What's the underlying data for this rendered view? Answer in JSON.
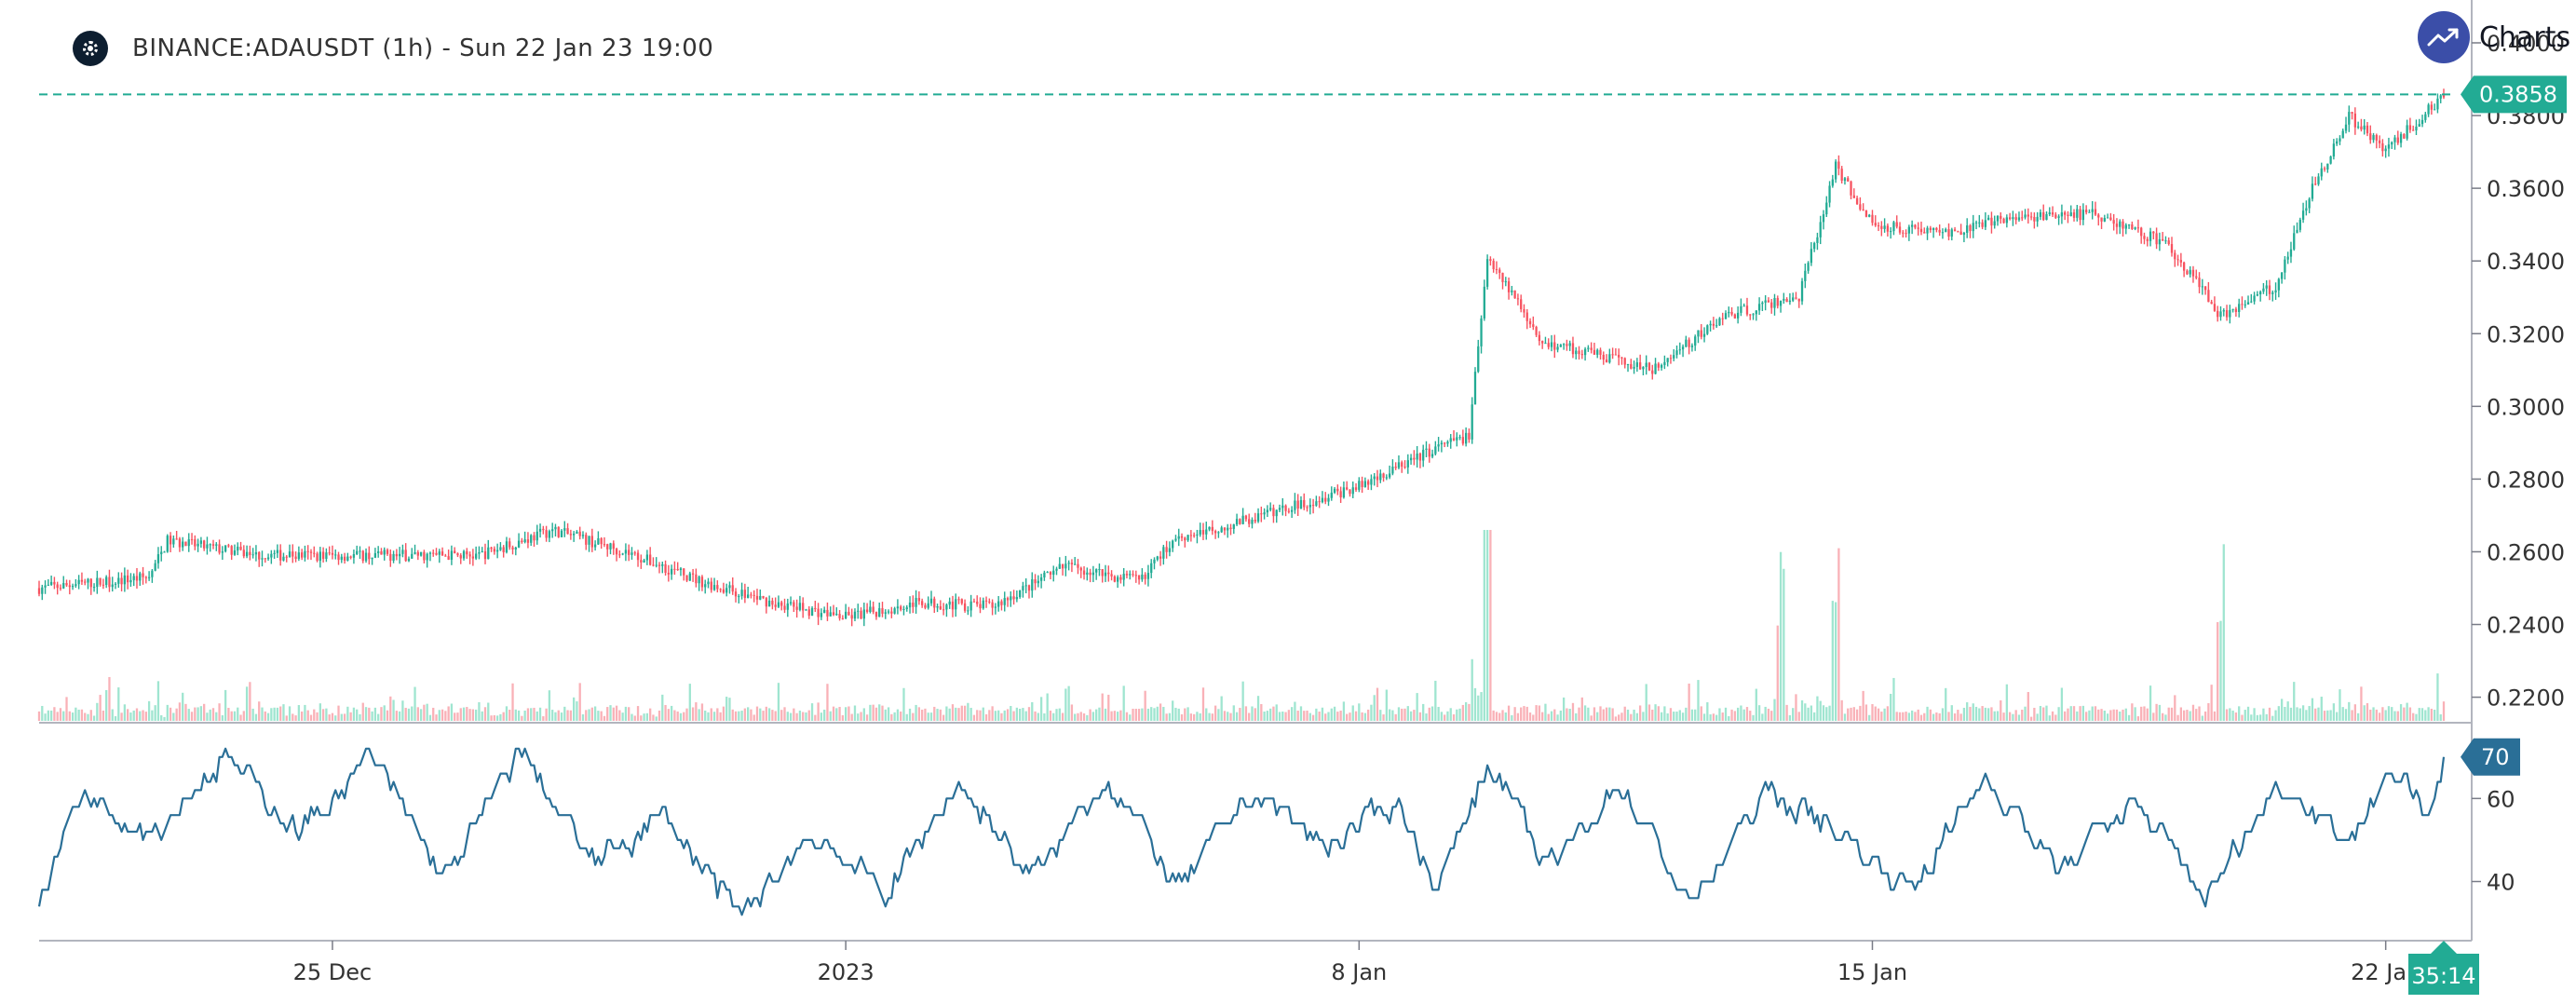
{
  "header": {
    "symbol_title": "BINANCE:ADAUSDT (1h) - Sun 22 Jan 23 19:00",
    "coin_icon": "cardano-logo-icon",
    "brand_icon": "trending-up-icon",
    "brand_text": "Charts p"
  },
  "colors": {
    "up": "#26a69a",
    "up_candle": "#22ab94",
    "down": "#f7525f",
    "volume_up": "#9fe5d0",
    "volume_down": "#f9b1b7",
    "rsi_line": "#2a6f97",
    "last_price_line": "#22ab94",
    "axis": "#787b86"
  },
  "chart_data": [
    {
      "type": "candlestick",
      "title": "",
      "xlabel": "",
      "ylabel": "",
      "x_ticks": [
        "25 Dec",
        "2023",
        "8 Jan",
        "15 Jan",
        "22 Jan"
      ],
      "x_range": [
        "2022-12-21",
        "2023-01-22 19:00"
      ],
      "y_ticks": [
        "0.2200",
        "0.2400",
        "0.2600",
        "0.2800",
        "0.3000",
        "0.3200",
        "0.3400",
        "0.3600",
        "0.3800",
        "0.4000"
      ],
      "ylim": [
        0.214,
        0.4
      ],
      "last_price": "0.3858",
      "countdown": "35:14",
      "grid": false,
      "close_path": [
        [
          "2022-12-21 00:00",
          0.25
        ],
        [
          "2022-12-22 12:00",
          0.253
        ],
        [
          "2022-12-22 18:00",
          0.263
        ],
        [
          "2022-12-24 00:00",
          0.259
        ],
        [
          "2022-12-26 00:00",
          0.259
        ],
        [
          "2022-12-27 00:00",
          0.259
        ],
        [
          "2022-12-28 00:00",
          0.266
        ],
        [
          "2022-12-29 00:00",
          0.26
        ],
        [
          "2022-12-30 00:00",
          0.252
        ],
        [
          "2022-12-31 00:00",
          0.246
        ],
        [
          "2023-01-01 00:00",
          0.242
        ],
        [
          "2023-01-02 00:00",
          0.246
        ],
        [
          "2023-01-03 00:00",
          0.245
        ],
        [
          "2023-01-04 00:00",
          0.256
        ],
        [
          "2023-01-05 00:00",
          0.252
        ],
        [
          "2023-01-05 12:00",
          0.264
        ],
        [
          "2023-01-06 00:00",
          0.266
        ],
        [
          "2023-01-07 00:00",
          0.272
        ],
        [
          "2023-01-08 00:00",
          0.278
        ],
        [
          "2023-01-09 00:00",
          0.288
        ],
        [
          "2023-01-09 12:00",
          0.292
        ],
        [
          "2023-01-09 18:00",
          0.342
        ],
        [
          "2023-01-10 12:00",
          0.318
        ],
        [
          "2023-01-12 00:00",
          0.31
        ],
        [
          "2023-01-13 00:00",
          0.325
        ],
        [
          "2023-01-14 00:00",
          0.33
        ],
        [
          "2023-01-14 12:00",
          0.366
        ],
        [
          "2023-01-15 00:00",
          0.35
        ],
        [
          "2023-01-16 00:00",
          0.348
        ],
        [
          "2023-01-17 00:00",
          0.352
        ],
        [
          "2023-01-18 00:00",
          0.353
        ],
        [
          "2023-01-19 00:00",
          0.345
        ],
        [
          "2023-01-19 18:00",
          0.325
        ],
        [
          "2023-01-20 12:00",
          0.333
        ],
        [
          "2023-01-21 00:00",
          0.36
        ],
        [
          "2023-01-21 12:00",
          0.38
        ],
        [
          "2023-01-22 00:00",
          0.37
        ],
        [
          "2023-01-22 19:00",
          0.3858
        ]
      ],
      "volume": {
        "spikes": [
          [
            "2023-01-09 18:00",
            0.0
          ],
          [
            "2023-01-13 18:00",
            0.0
          ],
          [
            "2023-01-14 12:00",
            0.0
          ],
          [
            "2023-01-19 18:00",
            0.0
          ]
        ]
      }
    },
    {
      "type": "line",
      "name": "",
      "y_ticks": [
        "40",
        "60"
      ],
      "ylim": [
        28,
        76
      ],
      "last_value": "70",
      "anchors": [
        [
          "2022-12-21 00:00",
          36
        ],
        [
          "2022-12-21 12:00",
          62
        ],
        [
          "2022-12-22 12:00",
          52
        ],
        [
          "2022-12-23 12:00",
          70
        ],
        [
          "2022-12-24 12:00",
          52
        ],
        [
          "2022-12-25 12:00",
          70
        ],
        [
          "2022-12-26 12:00",
          40
        ],
        [
          "2022-12-27 12:00",
          72
        ],
        [
          "2022-12-28 12:00",
          44
        ],
        [
          "2022-12-29 12:00",
          56
        ],
        [
          "2022-12-30 12:00",
          31
        ],
        [
          "2022-12-31 12:00",
          52
        ],
        [
          "2023-01-01 12:00",
          37
        ],
        [
          "2023-01-02 12:00",
          64
        ],
        [
          "2023-01-03 12:00",
          40
        ],
        [
          "2023-01-04 12:00",
          66
        ],
        [
          "2023-01-05 12:00",
          38
        ],
        [
          "2023-01-06 12:00",
          62
        ],
        [
          "2023-01-07 12:00",
          48
        ],
        [
          "2023-01-08 12:00",
          60
        ],
        [
          "2023-01-09 00:00",
          38
        ],
        [
          "2023-01-09 18:00",
          70
        ],
        [
          "2023-01-10 12:00",
          42
        ],
        [
          "2023-01-11 12:00",
          64
        ],
        [
          "2023-01-12 12:00",
          34
        ],
        [
          "2023-01-13 12:00",
          62
        ],
        [
          "2023-01-14 12:00",
          52
        ],
        [
          "2023-01-15 12:00",
          38
        ],
        [
          "2023-01-16 12:00",
          66
        ],
        [
          "2023-01-17 12:00",
          42
        ],
        [
          "2023-01-18 12:00",
          60
        ],
        [
          "2023-01-19 12:00",
          36
        ],
        [
          "2023-01-20 12:00",
          64
        ],
        [
          "2023-01-21 12:00",
          50
        ],
        [
          "2023-01-22 00:00",
          68
        ],
        [
          "2023-01-22 12:00",
          55
        ],
        [
          "2023-01-22 19:00",
          70
        ]
      ]
    }
  ]
}
